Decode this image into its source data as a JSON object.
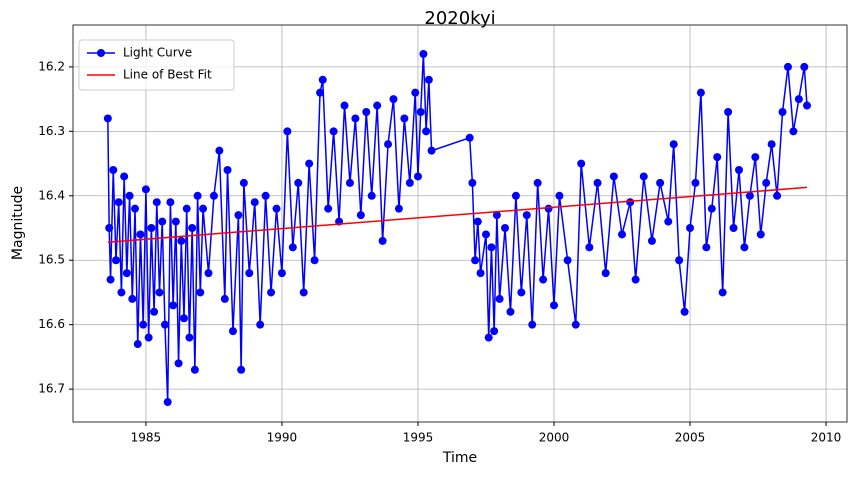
{
  "chart_data": {
    "type": "line",
    "title": "2020kyi",
    "x_label": "Time",
    "y_label": "Magnitude",
    "xlim": [
      1982.32,
      2010.77
    ],
    "xticks": [
      1985,
      1990,
      1995,
      2000,
      2005,
      2010
    ],
    "ylim": [
      16.135,
      16.751
    ],
    "yticks": [
      16.2,
      16.3,
      16.4,
      16.5,
      16.6,
      16.7
    ],
    "invert_y": true,
    "grid": true,
    "legend": "upper left",
    "series": [
      {
        "name": "Light Curve",
        "color": "#0000ff",
        "marker": true,
        "x": [
          1983.6,
          1983.65,
          1983.7,
          1983.8,
          1983.9,
          1984.0,
          1984.1,
          1984.2,
          1984.3,
          1984.4,
          1984.5,
          1984.6,
          1984.7,
          1984.8,
          1984.9,
          1985.0,
          1985.1,
          1985.2,
          1985.3,
          1985.4,
          1985.5,
          1985.6,
          1985.7,
          1985.8,
          1985.9,
          1986.0,
          1986.1,
          1986.2,
          1986.3,
          1986.4,
          1986.5,
          1986.6,
          1986.7,
          1986.8,
          1986.9,
          1987.0,
          1987.1,
          1987.3,
          1987.5,
          1987.7,
          1987.9,
          1988.0,
          1988.2,
          1988.4,
          1988.5,
          1988.6,
          1988.8,
          1989.0,
          1989.2,
          1989.4,
          1989.6,
          1989.8,
          1990.0,
          1990.2,
          1990.4,
          1990.6,
          1990.8,
          1991.0,
          1991.2,
          1991.4,
          1991.5,
          1991.7,
          1991.9,
          1992.1,
          1992.3,
          1992.5,
          1992.7,
          1992.9,
          1993.1,
          1993.3,
          1993.5,
          1993.7,
          1993.9,
          1994.1,
          1994.3,
          1994.5,
          1994.7,
          1994.9,
          1995.0,
          1995.1,
          1995.2,
          1995.3,
          1995.4,
          1995.5,
          1996.9,
          1997.0,
          1997.1,
          1997.2,
          1997.3,
          1997.5,
          1997.6,
          1997.7,
          1997.8,
          1997.9,
          1998.0,
          1998.2,
          1998.4,
          1998.6,
          1998.8,
          1999.0,
          1999.2,
          1999.4,
          1999.6,
          1999.8,
          2000.0,
          2000.2,
          2000.5,
          2000.8,
          2001.0,
          2001.3,
          2001.6,
          2001.9,
          2002.2,
          2002.5,
          2002.8,
          2003.0,
          2003.3,
          2003.6,
          2003.9,
          2004.2,
          2004.4,
          2004.6,
          2004.8,
          2005.0,
          2005.2,
          2005.4,
          2005.6,
          2005.8,
          2006.0,
          2006.2,
          2006.4,
          2006.6,
          2006.8,
          2007.0,
          2007.2,
          2007.4,
          2007.6,
          2007.8,
          2008.0,
          2008.2,
          2008.4,
          2008.6,
          2008.8,
          2009.0,
          2009.2,
          2009.3
        ],
        "values": [
          16.28,
          16.45,
          16.53,
          16.36,
          16.5,
          16.41,
          16.55,
          16.37,
          16.52,
          16.4,
          16.56,
          16.42,
          16.63,
          16.46,
          16.6,
          16.39,
          16.62,
          16.45,
          16.58,
          16.41,
          16.55,
          16.44,
          16.6,
          16.72,
          16.41,
          16.57,
          16.44,
          16.66,
          16.47,
          16.59,
          16.42,
          16.62,
          16.45,
          16.67,
          16.4,
          16.55,
          16.42,
          16.52,
          16.4,
          16.33,
          16.56,
          16.36,
          16.61,
          16.43,
          16.67,
          16.38,
          16.52,
          16.41,
          16.6,
          16.4,
          16.55,
          16.42,
          16.52,
          16.3,
          16.48,
          16.38,
          16.55,
          16.35,
          16.5,
          16.24,
          16.22,
          16.42,
          16.3,
          16.44,
          16.26,
          16.38,
          16.28,
          16.43,
          16.27,
          16.4,
          16.26,
          16.47,
          16.32,
          16.25,
          16.42,
          16.28,
          16.38,
          16.24,
          16.37,
          16.27,
          16.18,
          16.3,
          16.22,
          16.33,
          16.31,
          16.38,
          16.5,
          16.44,
          16.52,
          16.46,
          16.62,
          16.48,
          16.61,
          16.43,
          16.56,
          16.45,
          16.58,
          16.4,
          16.55,
          16.43,
          16.6,
          16.38,
          16.53,
          16.42,
          16.57,
          16.4,
          16.5,
          16.6,
          16.35,
          16.48,
          16.38,
          16.52,
          16.37,
          16.46,
          16.41,
          16.53,
          16.37,
          16.47,
          16.38,
          16.44,
          16.32,
          16.5,
          16.58,
          16.45,
          16.38,
          16.24,
          16.48,
          16.42,
          16.34,
          16.55,
          16.27,
          16.45,
          16.36,
          16.48,
          16.4,
          16.34,
          16.46,
          16.38,
          16.32,
          16.4,
          16.27,
          16.2,
          16.3,
          16.25,
          16.2,
          16.26
        ]
      },
      {
        "name": "Line of Best Fit",
        "color": "#ff0000",
        "marker": false,
        "x": [
          1983.6,
          2009.3
        ],
        "values": [
          16.472,
          16.387
        ]
      }
    ]
  }
}
